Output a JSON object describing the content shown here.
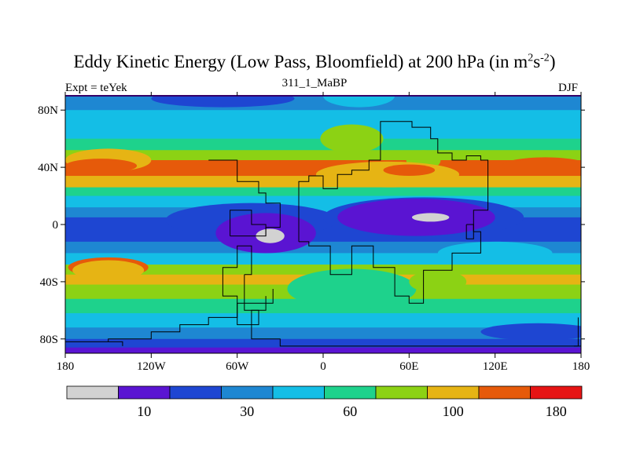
{
  "chart_data": {
    "type": "heatmap",
    "title": "Eddy Kinetic Energy (Low Pass, Bloomfield) at 200 hPa (in m",
    "title_units": {
      "sup1": "2",
      "mid": "s",
      "sup2": "-2",
      "close": ")"
    },
    "subtitle": "311_1_MaBP",
    "left_label": "Expt = teYek",
    "right_label": "DJF",
    "x_range": [
      -180,
      180
    ],
    "y_range": [
      -90,
      90
    ],
    "x_ticks": [
      {
        "value": -180,
        "label": "180"
      },
      {
        "value": -120,
        "label": "120W"
      },
      {
        "value": -60,
        "label": "60W"
      },
      {
        "value": 0,
        "label": "0"
      },
      {
        "value": 60,
        "label": "60E"
      },
      {
        "value": 120,
        "label": "120E"
      },
      {
        "value": 180,
        "label": "180"
      }
    ],
    "y_ticks": [
      {
        "value": 80,
        "label": "80N"
      },
      {
        "value": 40,
        "label": "40N"
      },
      {
        "value": 0,
        "label": "0"
      },
      {
        "value": -40,
        "label": "40S"
      },
      {
        "value": -80,
        "label": "80S"
      }
    ],
    "colorbar": {
      "colors": [
        "#d2d2d2",
        "#5a14d2",
        "#1e46d2",
        "#1e87d2",
        "#14bee6",
        "#1ed28c",
        "#8cd214",
        "#e6b414",
        "#e65a0a",
        "#e61414"
      ],
      "labels": [
        {
          "after_box": 2,
          "label": "10"
        },
        {
          "after_box": 4,
          "label": "30"
        },
        {
          "after_box": 6,
          "label": "60"
        },
        {
          "after_box": 8,
          "label": "100"
        },
        {
          "after_box": 10,
          "label": "180"
        }
      ]
    },
    "bands": [
      {
        "lat": 90,
        "level": 3
      },
      {
        "lat": 87,
        "level": 3
      },
      {
        "lat": 80,
        "level": 4
      },
      {
        "lat": 70,
        "level": 4
      },
      {
        "lat": 60,
        "level": 5
      },
      {
        "lat": 52,
        "level": 6
      },
      {
        "lat": 45,
        "level": 8
      },
      {
        "lat": 40,
        "level": 8
      },
      {
        "lat": 34,
        "level": 7
      },
      {
        "lat": 26,
        "level": 5
      },
      {
        "lat": 20,
        "level": 4
      },
      {
        "lat": 12,
        "level": 3
      },
      {
        "lat": 5,
        "level": 2
      },
      {
        "lat": -3,
        "level": 2
      },
      {
        "lat": -12,
        "level": 3
      },
      {
        "lat": -20,
        "level": 4
      },
      {
        "lat": -28,
        "level": 6
      },
      {
        "lat": -35,
        "level": 7
      },
      {
        "lat": -42,
        "level": 6
      },
      {
        "lat": -52,
        "level": 5
      },
      {
        "lat": -62,
        "level": 4
      },
      {
        "lat": -72,
        "level": 3
      },
      {
        "lat": -80,
        "level": 2
      },
      {
        "lat": -86,
        "level": 1
      },
      {
        "lat": -90,
        "level": 1
      }
    ],
    "patches": [
      {
        "lon": -20,
        "lat": 12,
        "rx": 32,
        "ry": 8,
        "level": 4
      },
      {
        "lon": 20,
        "lat": 60,
        "rx": 22,
        "ry": 10,
        "level": 6
      },
      {
        "lon": 70,
        "lat": 45,
        "rx": 12,
        "ry": 7,
        "level": 6
      },
      {
        "lon": -150,
        "lat": 45,
        "rx": 30,
        "ry": 8,
        "level": 7
      },
      {
        "lon": -155,
        "lat": 41,
        "rx": 25,
        "ry": 5,
        "level": 8
      },
      {
        "lon": 45,
        "lat": 35,
        "rx": 50,
        "ry": 9,
        "level": 7
      },
      {
        "lon": 60,
        "lat": 38,
        "rx": 18,
        "ry": 4,
        "level": 8
      },
      {
        "lon": 155,
        "lat": 41,
        "rx": 30,
        "ry": 6,
        "level": 8
      },
      {
        "lon": 25,
        "lat": 90,
        "rx": 25,
        "ry": 8,
        "level": 4
      },
      {
        "lon": -70,
        "lat": 88,
        "rx": 50,
        "ry": 6,
        "level": 2
      },
      {
        "lon": -50,
        "lat": 3,
        "rx": 60,
        "ry": 12,
        "level": 2
      },
      {
        "lon": 70,
        "lat": 5,
        "rx": 70,
        "ry": 14,
        "level": 2
      },
      {
        "lon": -40,
        "lat": -6,
        "rx": 35,
        "ry": 14,
        "level": 1
      },
      {
        "lon": 65,
        "lat": 5,
        "rx": 55,
        "ry": 13,
        "level": 1
      },
      {
        "lon": -37,
        "lat": -8,
        "rx": 10,
        "ry": 5,
        "level": 0
      },
      {
        "lon": 75,
        "lat": 5,
        "rx": 13,
        "ry": 3,
        "level": 0
      },
      {
        "lon": -150,
        "lat": -30,
        "rx": 28,
        "ry": 7,
        "level": 8
      },
      {
        "lon": -150,
        "lat": -32,
        "rx": 25,
        "ry": 7,
        "level": 7
      },
      {
        "lon": 20,
        "lat": -45,
        "rx": 45,
        "ry": 14,
        "level": 5
      },
      {
        "lon": 80,
        "lat": -40,
        "rx": 20,
        "ry": 8,
        "level": 6
      },
      {
        "lon": 120,
        "lat": -20,
        "rx": 40,
        "ry": 8,
        "level": 4
      },
      {
        "lon": 150,
        "lat": -75,
        "rx": 40,
        "ry": 6,
        "level": 2
      }
    ],
    "outline": [
      [
        [
          -17,
          -12
        ],
        [
          -17,
          30
        ],
        [
          -10,
          30
        ],
        [
          -10,
          34
        ],
        [
          0,
          34
        ],
        [
          0,
          25
        ],
        [
          10,
          25
        ],
        [
          10,
          35
        ],
        [
          20,
          35
        ],
        [
          20,
          38
        ],
        [
          32,
          38
        ],
        [
          32,
          45
        ],
        [
          40,
          45
        ],
        [
          40,
          72
        ],
        [
          62,
          72
        ],
        [
          62,
          68
        ],
        [
          75,
          68
        ],
        [
          75,
          60
        ],
        [
          80,
          60
        ],
        [
          80,
          50
        ],
        [
          90,
          50
        ],
        [
          90,
          45
        ],
        [
          100,
          45
        ],
        [
          100,
          48
        ],
        [
          110,
          48
        ],
        [
          110,
          45
        ],
        [
          115,
          45
        ],
        [
          115,
          10
        ],
        [
          105,
          10
        ],
        [
          105,
          -5
        ],
        [
          110,
          -5
        ],
        [
          110,
          -20
        ],
        [
          90,
          -20
        ],
        [
          90,
          -32
        ],
        [
          70,
          -32
        ],
        [
          70,
          -55
        ],
        [
          60,
          -55
        ],
        [
          60,
          -50
        ],
        [
          50,
          -50
        ],
        [
          50,
          -30
        ],
        [
          35,
          -30
        ],
        [
          35,
          -15
        ],
        [
          20,
          -15
        ],
        [
          20,
          -35
        ],
        [
          5,
          -35
        ],
        [
          5,
          -15
        ],
        [
          -10,
          -15
        ],
        [
          -10,
          -12
        ],
        [
          -17,
          -12
        ]
      ],
      [
        [
          -55,
          -35
        ],
        [
          -55,
          -60
        ],
        [
          -45,
          -60
        ],
        [
          -45,
          -70
        ],
        [
          -60,
          -70
        ],
        [
          -60,
          -50
        ],
        [
          -70,
          -50
        ],
        [
          -70,
          -30
        ],
        [
          -60,
          -30
        ],
        [
          -60,
          -15
        ],
        [
          -50,
          -15
        ],
        [
          -50,
          -35
        ],
        [
          -55,
          -35
        ]
      ],
      [
        [
          -35,
          -45
        ],
        [
          -35,
          -55
        ],
        [
          -60,
          -55
        ],
        [
          -60,
          -65
        ],
        [
          -80,
          -65
        ],
        [
          -80,
          -70
        ],
        [
          -100,
          -70
        ],
        [
          -100,
          -75
        ],
        [
          -120,
          -75
        ],
        [
          -120,
          -80
        ],
        [
          -150,
          -80
        ],
        [
          -150,
          -82
        ]
      ],
      [
        [
          -40,
          -50
        ],
        [
          -40,
          -60
        ],
        [
          -50,
          -60
        ],
        [
          -50,
          -80
        ],
        [
          -30,
          -80
        ],
        [
          -30,
          -85
        ],
        [
          180,
          -85
        ]
      ],
      [
        [
          -180,
          -82
        ],
        [
          -140,
          -82
        ],
        [
          -140,
          -85
        ]
      ],
      [
        [
          178,
          -65
        ],
        [
          178,
          -85
        ],
        [
          175,
          -85
        ]
      ],
      [
        [
          100,
          0
        ],
        [
          100,
          -10
        ],
        [
          105,
          -10
        ],
        [
          105,
          0
        ],
        [
          100,
          0
        ]
      ],
      [
        [
          -65,
          -8
        ],
        [
          -65,
          10
        ],
        [
          -50,
          10
        ],
        [
          -50,
          0
        ],
        [
          -40,
          0
        ],
        [
          -40,
          -8
        ],
        [
          -65,
          -8
        ]
      ],
      [
        [
          -80,
          45
        ],
        [
          -60,
          45
        ],
        [
          -60,
          30
        ],
        [
          -45,
          30
        ],
        [
          -45,
          22
        ],
        [
          -40,
          22
        ],
        [
          -40,
          15
        ],
        [
          -30,
          15
        ],
        [
          -30,
          -2
        ],
        [
          -40,
          -2
        ],
        [
          -40,
          -8
        ]
      ]
    ]
  }
}
